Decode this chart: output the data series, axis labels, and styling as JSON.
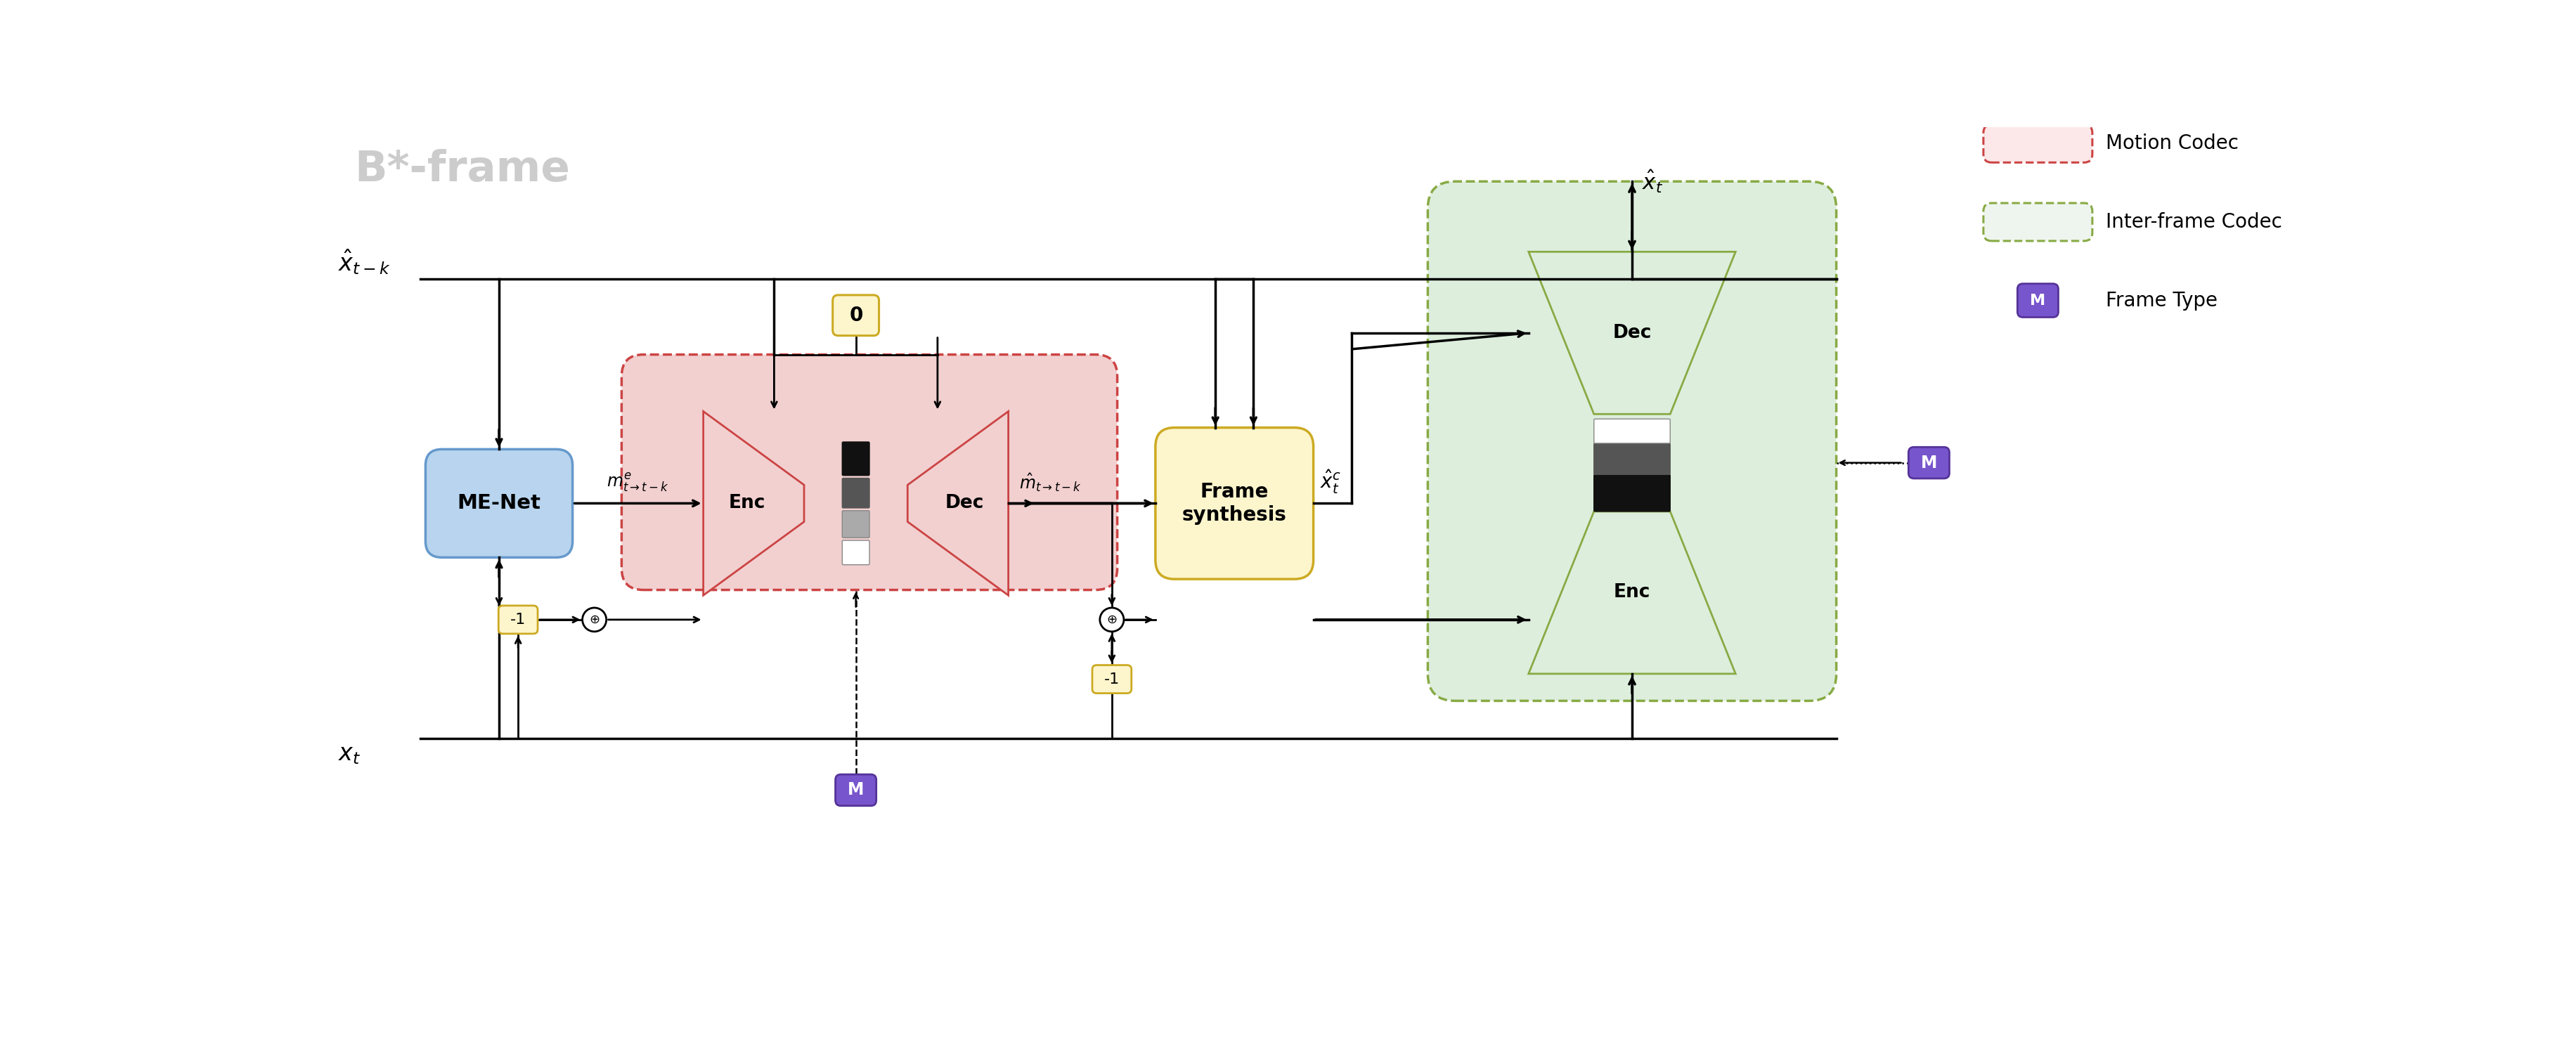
{
  "title": "B*-frame",
  "title_color": "#cccccc",
  "bg_color": "#ffffff",
  "label_xt_k": "$\\hat{x}_{t-k}$",
  "label_xt": "$x_t$",
  "label_me_net": "ME-Net",
  "label_enc": "Enc",
  "label_dec": "Dec",
  "label_frame_synthesis": "Frame\nsynthesis",
  "label_zero": "$\\mathbf{0}$",
  "label_neg1_1": "-1",
  "label_neg1_2": "-1",
  "label_m_motion": "M",
  "label_m_inter": "M",
  "label_m_e": "$m^e_{t\\rightarrow t-k}$",
  "label_m_hat": "$\\hat{m}_{t\\rightarrow t-k}$",
  "label_xt_c": "$\\hat{x}^c_t$",
  "label_xt_hat": "$\\hat{x}_t$",
  "me_net_color": "#b8d4ee",
  "me_net_edge_color": "#6699cc",
  "motion_codec_fill": "#f2d0d0",
  "motion_codec_edge": "#cc4444",
  "inter_codec_fill": "#ddeedd",
  "inter_codec_edge": "#88aa44",
  "frame_syn_fill": "#fdf5cc",
  "frame_syn_edge": "#ccaa22",
  "zero_fill": "#fdf5cc",
  "zero_edge": "#ccaa22",
  "neg1_fill": "#fdf5cc",
  "neg1_edge": "#ccaa22",
  "m_purple_fill": "#7755cc",
  "m_purple_edge": "#553399",
  "legend_motion_fill": "#fce8e8",
  "legend_inter_fill": "#eef5ee"
}
